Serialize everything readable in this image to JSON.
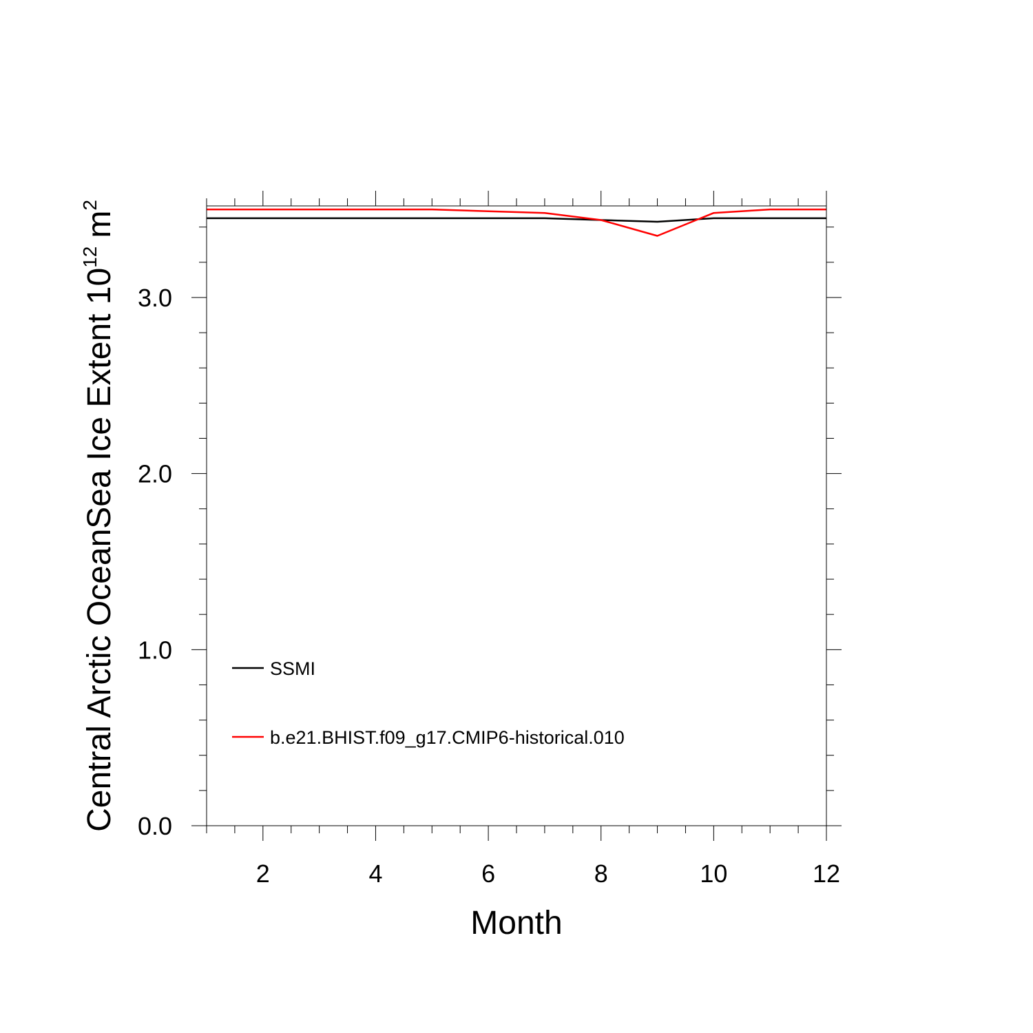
{
  "chart_data": {
    "type": "line",
    "xlabel": "Month",
    "ylabel": "Central Arctic OceanSea Ice Extent 10",
    "ylabel_superscript": "12",
    "ylabel_unit": "m",
    "ylabel_unit_superscript": "2",
    "xlim": [
      1,
      12
    ],
    "ylim": [
      0,
      3.52
    ],
    "x_ticks": [
      2,
      4,
      6,
      8,
      10,
      12
    ],
    "x_tick_labels": [
      "2",
      "4",
      "6",
      "8",
      "10",
      "12"
    ],
    "y_ticks": [
      0,
      1,
      2,
      3
    ],
    "y_tick_labels": [
      "0.0",
      "1.0",
      "2.0",
      "3.0"
    ],
    "grid": false,
    "legend_position": "lower-left",
    "x": [
      1,
      2,
      3,
      4,
      5,
      6,
      7,
      8,
      9,
      10,
      11,
      12
    ],
    "series": [
      {
        "name": "SSMI",
        "color": "#000000",
        "values": [
          3.45,
          3.45,
          3.45,
          3.45,
          3.45,
          3.45,
          3.45,
          3.44,
          3.43,
          3.45,
          3.45,
          3.45
        ]
      },
      {
        "name": "b.e21.BHIST.f09_g17.CMIP6-historical.010",
        "color": "#ff0000",
        "values": [
          3.5,
          3.5,
          3.5,
          3.5,
          3.5,
          3.49,
          3.48,
          3.44,
          3.35,
          3.48,
          3.5,
          3.5
        ]
      }
    ]
  }
}
